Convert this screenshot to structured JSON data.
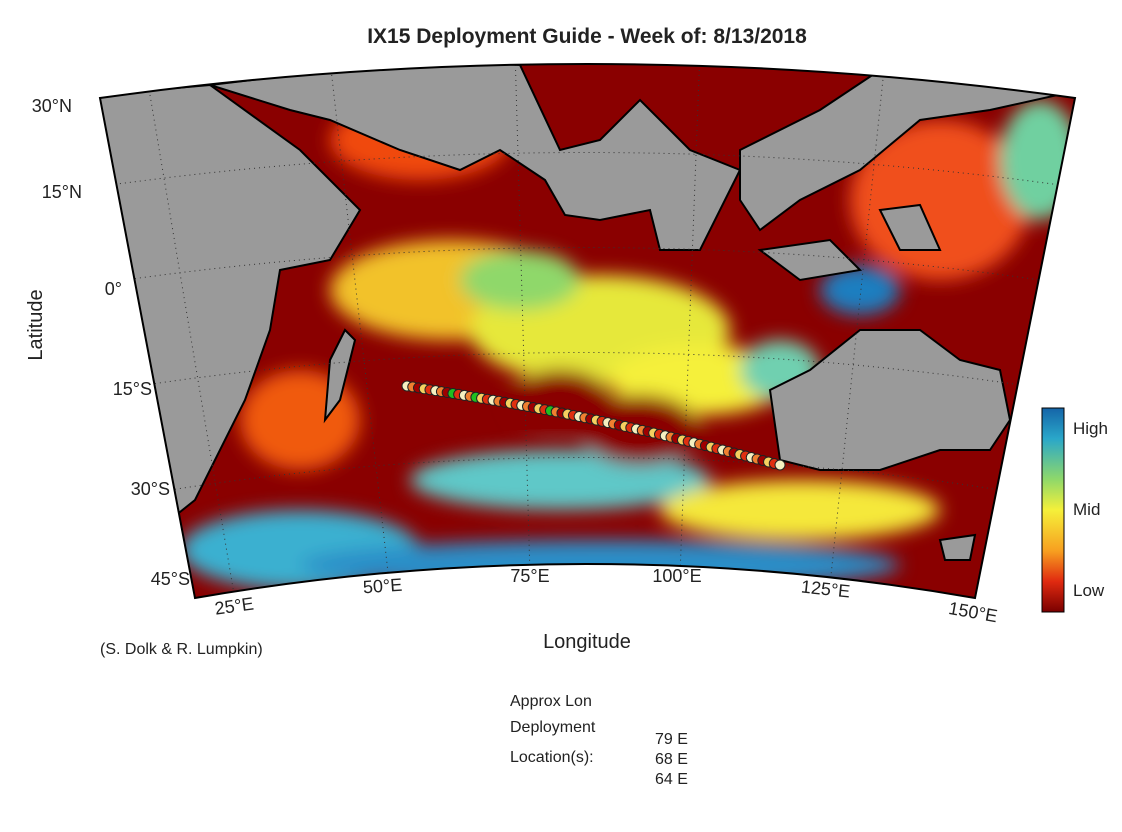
{
  "title": "IX15 Deployment Guide - Week of: 8/13/2018",
  "x_label": "Longitude",
  "y_label": "Latitude",
  "lat_ticks": [
    "30°N",
    "15°N",
    "0°",
    "15°S",
    "30°S",
    "45°S"
  ],
  "lon_ticks": [
    "25°E",
    "50°E",
    "75°E",
    "100°E",
    "125°E",
    "150°E"
  ],
  "colorbar_labels": [
    "High",
    "Mid",
    "Low"
  ],
  "credit": "(S. Dolk & R. Lumpkin)",
  "deployment": {
    "label_lines": [
      "Approx Lon",
      "Deployment",
      "Location(s):"
    ],
    "locations": [
      "79 E",
      "68 E",
      "64 E"
    ]
  }
}
